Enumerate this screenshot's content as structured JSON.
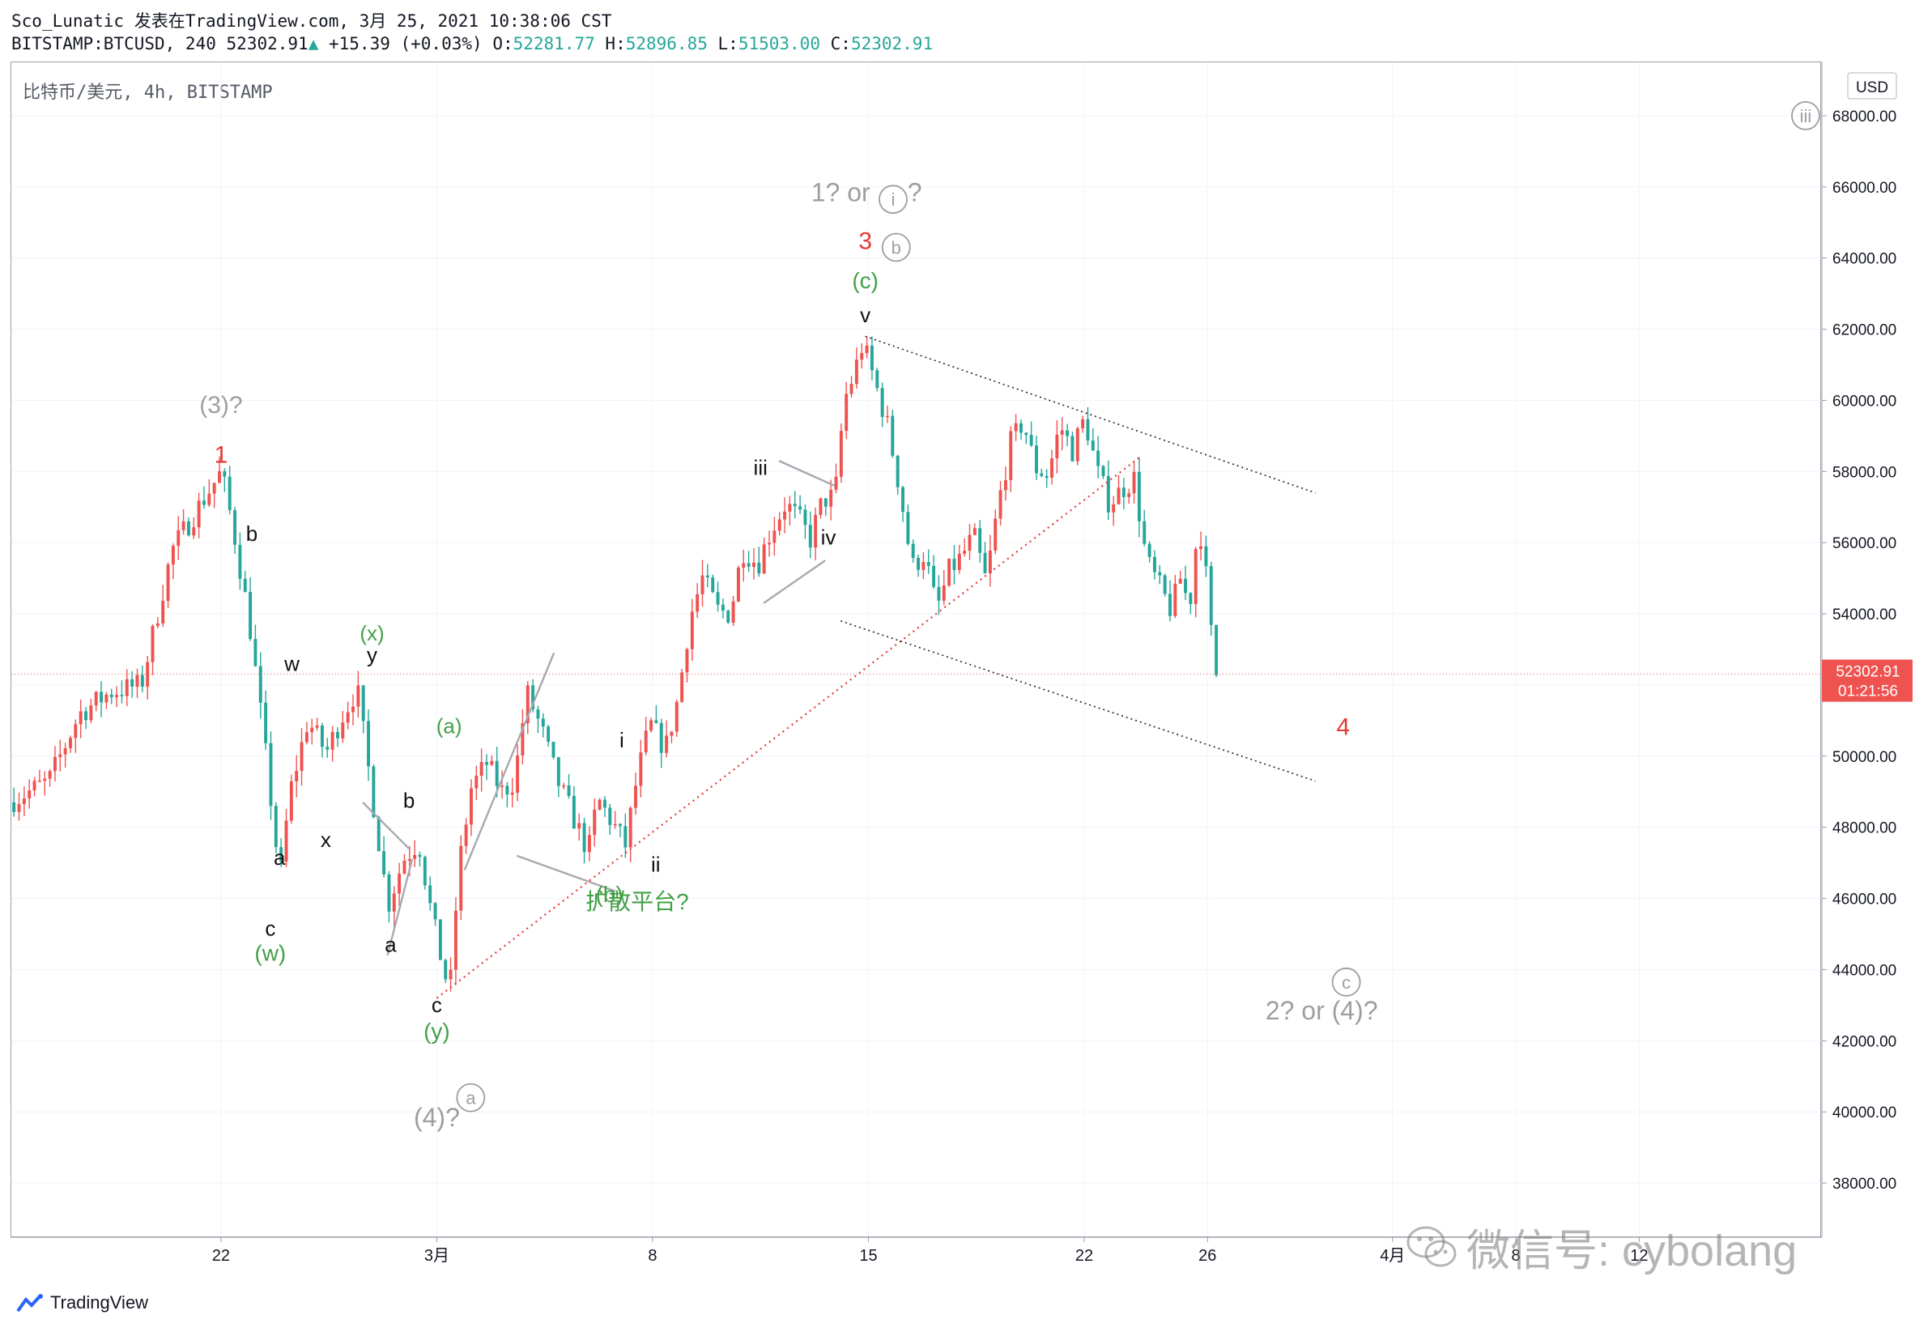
{
  "header": {
    "line1": "Sco_Lunatic 发表在TradingView.com, 3月 25, 2021 10:38:06 CST",
    "symbol": "BITSTAMP:BTCUSD, 240",
    "price": "52302.91",
    "change": "+15.39 (+0.03%)",
    "o_label": "O:",
    "o": "52281.77",
    "h_label": "H:",
    "h": "52896.85",
    "l_label": "L:",
    "l": "51503.00",
    "c_label": "C:",
    "c": "52302.91"
  },
  "symbol_label": "比特币/美元, 4h, BITSTAMP",
  "currency_badge": "USD",
  "last_price_tag": {
    "price": "52302.91",
    "countdown": "01:21:56"
  },
  "footer": {
    "brand": "TradingView"
  },
  "watermark": {
    "text": "微信号: cybolang"
  },
  "colors": {
    "up": "#ef5350",
    "down": "#26a69a",
    "red_label": "#e53935",
    "green_label": "#43a047",
    "gray_label": "#9e9e9e",
    "last_price": "#ef5350"
  },
  "chart_data": {
    "type": "candlestick",
    "title": "",
    "ylim": [
      36500,
      69500
    ],
    "y_ticks": [
      "68000.00",
      "66000.00",
      "64000.00",
      "62000.00",
      "60000.00",
      "58000.00",
      "56000.00",
      "54000.00",
      "52000.00",
      "50000.00",
      "48000.00",
      "46000.00",
      "44000.00",
      "42000.00",
      "40000.00",
      "38000.00"
    ],
    "x_ticks": [
      {
        "label": "22",
        "day": 22
      },
      {
        "label": "3月",
        "day": 29
      },
      {
        "label": "8",
        "day": 36
      },
      {
        "label": "15",
        "day": 43
      },
      {
        "label": "22",
        "day": 50
      },
      {
        "label": "26",
        "day": 54
      },
      {
        "label": "4月",
        "day": 60
      },
      {
        "label": "8",
        "day": 64
      },
      {
        "label": "12",
        "day": 68
      }
    ],
    "x_range_days": [
      15.2,
      73.9
    ],
    "last_price": 52302.91,
    "price_path": [
      [
        15.2,
        48700
      ],
      [
        16.5,
        49300
      ],
      [
        17.5,
        51200
      ],
      [
        18.5,
        51800
      ],
      [
        19.5,
        52000
      ],
      [
        20.5,
        55800
      ],
      [
        21.5,
        57200
      ],
      [
        22.1,
        58000
      ],
      [
        22.5,
        56300
      ],
      [
        23.0,
        53800
      ],
      [
        23.5,
        50300
      ],
      [
        24.0,
        46500
      ],
      [
        24.3,
        48900
      ],
      [
        24.9,
        51000
      ],
      [
        25.5,
        50100
      ],
      [
        26.0,
        51100
      ],
      [
        26.5,
        51900
      ],
      [
        27.1,
        48200
      ],
      [
        27.5,
        45800
      ],
      [
        28.0,
        47100
      ],
      [
        28.5,
        47600
      ],
      [
        28.9,
        45600
      ],
      [
        29.2,
        44400
      ],
      [
        29.5,
        43300
      ],
      [
        29.8,
        46900
      ],
      [
        30.2,
        49100
      ],
      [
        30.7,
        49800
      ],
      [
        31.2,
        49000
      ],
      [
        31.6,
        49300
      ],
      [
        32.0,
        51800
      ],
      [
        32.5,
        50700
      ],
      [
        33.0,
        49300
      ],
      [
        33.5,
        48300
      ],
      [
        34.0,
        47300
      ],
      [
        34.3,
        48800
      ],
      [
        34.8,
        48100
      ],
      [
        35.2,
        47500
      ],
      [
        35.6,
        49500
      ],
      [
        36.0,
        50900
      ],
      [
        36.5,
        50200
      ],
      [
        36.9,
        51600
      ],
      [
        37.3,
        53900
      ],
      [
        37.7,
        55000
      ],
      [
        38.2,
        54100
      ],
      [
        38.6,
        54000
      ],
      [
        39.0,
        55800
      ],
      [
        39.5,
        55400
      ],
      [
        39.9,
        56300
      ],
      [
        40.4,
        57100
      ],
      [
        40.8,
        56700
      ],
      [
        41.2,
        56100
      ],
      [
        41.6,
        57200
      ],
      [
        42.0,
        57300
      ],
      [
        42.3,
        60000
      ],
      [
        42.6,
        60700
      ],
      [
        42.9,
        61600
      ],
      [
        43.3,
        60500
      ],
      [
        43.7,
        59300
      ],
      [
        44.1,
        57500
      ],
      [
        44.5,
        55300
      ],
      [
        44.9,
        55700
      ],
      [
        45.3,
        54100
      ],
      [
        45.7,
        55200
      ],
      [
        46.1,
        55600
      ],
      [
        46.5,
        56200
      ],
      [
        46.9,
        54900
      ],
      [
        47.3,
        57100
      ],
      [
        47.7,
        58800
      ],
      [
        48.1,
        59400
      ],
      [
        48.5,
        58100
      ],
      [
        48.9,
        57900
      ],
      [
        49.3,
        59300
      ],
      [
        49.7,
        58600
      ],
      [
        50.1,
        59500
      ],
      [
        50.5,
        58000
      ],
      [
        50.9,
        57100
      ],
      [
        51.3,
        57500
      ],
      [
        51.7,
        57800
      ],
      [
        52.1,
        55500
      ],
      [
        52.5,
        54800
      ],
      [
        52.9,
        54100
      ],
      [
        53.2,
        55000
      ],
      [
        53.5,
        54200
      ],
      [
        53.8,
        56700
      ],
      [
        54.1,
        54600
      ],
      [
        54.3,
        52300
      ]
    ],
    "trendlines": [
      {
        "style": "dotted-red",
        "from": [
          29.0,
          43200
        ],
        "to": [
          51.8,
          58400
        ]
      },
      {
        "style": "dotted-black",
        "from": [
          42.9,
          61800
        ],
        "to": [
          57.5,
          57400
        ]
      },
      {
        "style": "dotted-black",
        "from": [
          42.1,
          53800
        ],
        "to": [
          57.5,
          49300
        ]
      },
      {
        "style": "gray",
        "from": [
          26.6,
          48700
        ],
        "to": [
          28.1,
          47400
        ]
      },
      {
        "style": "gray",
        "from": [
          27.4,
          44400
        ],
        "to": [
          28.2,
          47100
        ]
      },
      {
        "style": "gray",
        "from": [
          29.9,
          46800
        ],
        "to": [
          32.8,
          52900
        ]
      },
      {
        "style": "gray",
        "from": [
          31.6,
          47200
        ],
        "to": [
          34.8,
          46200
        ]
      },
      {
        "style": "gray",
        "from": [
          39.6,
          54300
        ],
        "to": [
          41.6,
          55500
        ]
      },
      {
        "style": "gray",
        "from": [
          40.1,
          58300
        ],
        "to": [
          41.9,
          57600
        ]
      }
    ],
    "annotations": [
      {
        "text": "(3)?",
        "day": 22.0,
        "price": 59650,
        "color": "gray",
        "size": 30
      },
      {
        "text": "1",
        "day": 22.0,
        "price": 58250,
        "color": "red",
        "size": 30
      },
      {
        "text": "b",
        "day": 23.0,
        "price": 56050,
        "color": "black",
        "size": 26
      },
      {
        "text": "(x)",
        "day": 26.9,
        "price": 53250,
        "color": "green",
        "size": 26
      },
      {
        "text": "w",
        "day": 24.3,
        "price": 52400,
        "color": "black",
        "size": 26
      },
      {
        "text": "y",
        "day": 26.9,
        "price": 52650,
        "color": "black",
        "size": 26
      },
      {
        "text": "b",
        "day": 28.1,
        "price": 48550,
        "color": "black",
        "size": 26
      },
      {
        "text": "x",
        "day": 25.4,
        "price": 47450,
        "color": "black",
        "size": 26
      },
      {
        "text": "a",
        "day": 23.9,
        "price": 46950,
        "color": "black",
        "size": 26
      },
      {
        "text": "c",
        "day": 23.6,
        "price": 44950,
        "color": "black",
        "size": 26
      },
      {
        "text": "(w)",
        "day": 23.6,
        "price": 44250,
        "color": "green",
        "size": 28
      },
      {
        "text": "a",
        "day": 27.5,
        "price": 44500,
        "color": "black",
        "size": 26
      },
      {
        "text": "c",
        "day": 29.0,
        "price": 42800,
        "color": "black",
        "size": 26
      },
      {
        "text": "(y)",
        "day": 29.0,
        "price": 42050,
        "color": "green",
        "size": 28
      },
      {
        "text": "(4)?",
        "day": 29.0,
        "price": 39600,
        "color": "gray",
        "size": 32
      },
      {
        "text": "(a)",
        "day": 29.4,
        "price": 50650,
        "color": "green",
        "size": 26
      },
      {
        "text": "i",
        "day": 35.0,
        "price": 50250,
        "color": "black",
        "size": 26
      },
      {
        "text": "ii",
        "day": 36.1,
        "price": 46750,
        "color": "black",
        "size": 26
      },
      {
        "text": "(b)",
        "day": 34.6,
        "price": 45900,
        "color": "green",
        "size": 28
      },
      {
        "text": "扩散平台?",
        "day": 35.5,
        "price": 45700,
        "color": "green",
        "size": 28
      },
      {
        "text": "iii",
        "day": 39.5,
        "price": 57900,
        "color": "black",
        "size": 26
      },
      {
        "text": "iv",
        "day": 41.7,
        "price": 55950,
        "color": "black",
        "size": 26
      },
      {
        "text": "v",
        "day": 42.9,
        "price": 62200,
        "color": "black",
        "size": 26
      },
      {
        "text": "(c)",
        "day": 42.9,
        "price": 63150,
        "color": "green",
        "size": 28
      },
      {
        "text": "1? or",
        "day": 42.1,
        "price": 65600,
        "color": "gray",
        "size": 32
      },
      {
        "text": "?",
        "day": 44.5,
        "price": 65600,
        "color": "gray",
        "size": 32
      },
      {
        "text": "3",
        "day": 42.9,
        "price": 64250,
        "color": "red",
        "size": 30
      },
      {
        "text": "4",
        "day": 58.4,
        "price": 50600,
        "color": "red",
        "size": 30
      },
      {
        "text": "2? or (4)?",
        "day": 57.7,
        "price": 42600,
        "color": "gray",
        "size": 32
      }
    ],
    "circled_labels": [
      {
        "text": "i",
        "day": 43.8,
        "price": 65650
      },
      {
        "text": "b",
        "day": 43.9,
        "price": 64300
      },
      {
        "text": "a",
        "day": 30.1,
        "price": 40400
      },
      {
        "text": "c",
        "day": 58.5,
        "price": 43650
      },
      {
        "text": "iii",
        "day": 73.4,
        "price": 68000
      }
    ]
  }
}
